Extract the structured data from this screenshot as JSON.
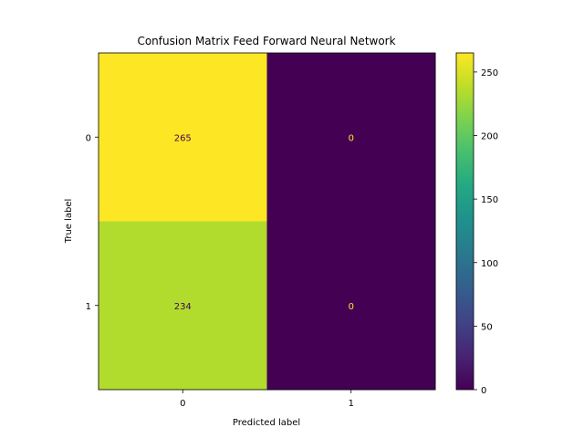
{
  "chart_data": {
    "type": "heatmap",
    "title": "Confusion Matrix Feed Forward Neural Network",
    "xlabel": "Predicted label",
    "ylabel": "True label",
    "x_categories": [
      "0",
      "1"
    ],
    "y_categories": [
      "0",
      "1"
    ],
    "values": [
      [
        265,
        0
      ],
      [
        234,
        0
      ]
    ],
    "colormap": "viridis",
    "colorbar": {
      "min": 0,
      "max": 265,
      "ticks": [
        0,
        50,
        100,
        150,
        200,
        250
      ]
    },
    "grid": false
  }
}
